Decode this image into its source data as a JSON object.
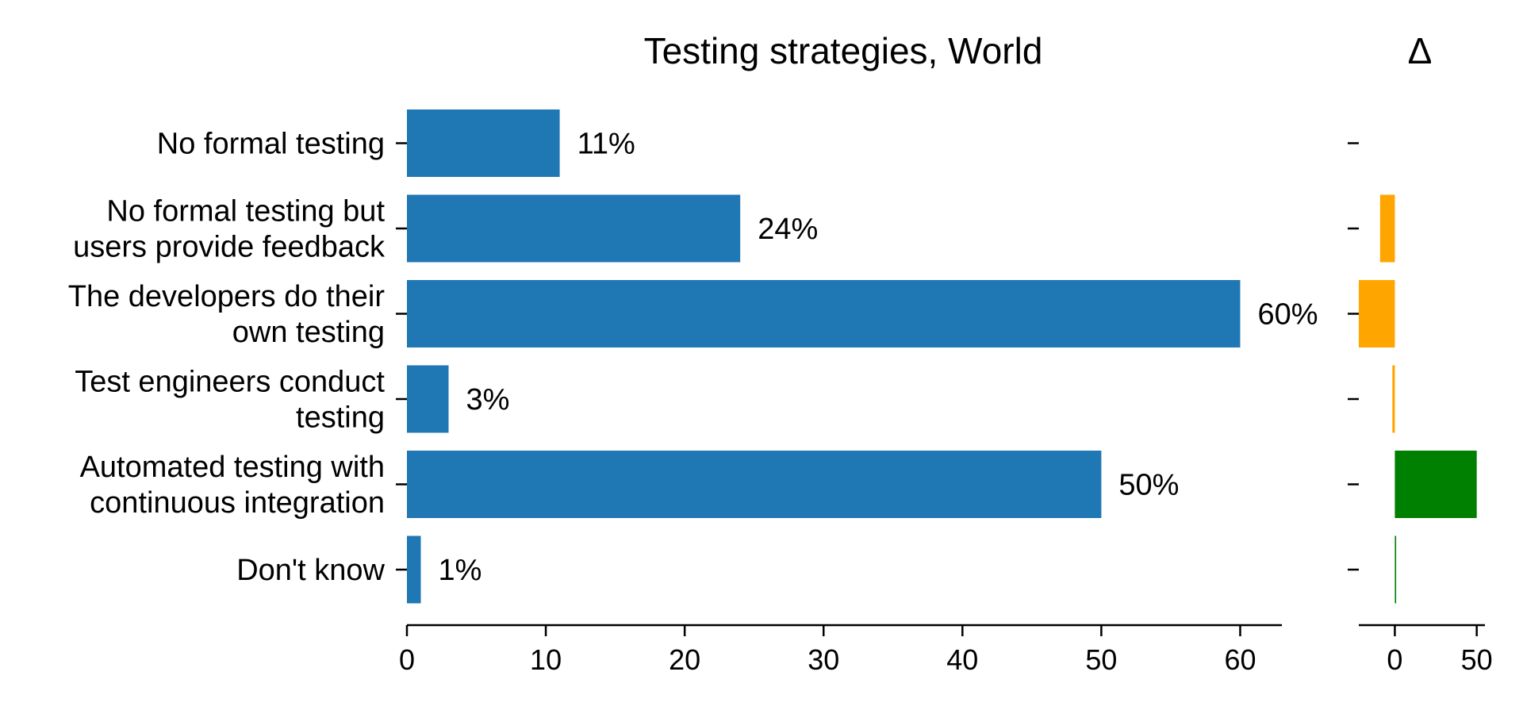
{
  "chart_data": {
    "type": "bar",
    "orientation": "horizontal",
    "title": "Testing strategies, World",
    "delta_title": "Δ",
    "categories": [
      [
        "No formal testing"
      ],
      [
        "No formal testing but",
        "users provide feedback"
      ],
      [
        "The developers do their",
        "own testing"
      ],
      [
        "Test engineers conduct",
        "testing"
      ],
      [
        "Automated testing with",
        "continuous integration"
      ],
      [
        "Don't know"
      ]
    ],
    "values": [
      11,
      24,
      60,
      3,
      50,
      1
    ],
    "value_labels": [
      "11%",
      "24%",
      "60%",
      "3%",
      "50%",
      "1%"
    ],
    "xlim": [
      0,
      63
    ],
    "xticks": [
      0,
      10,
      20,
      30,
      40,
      50,
      60
    ],
    "bar_color": "#1f77b4",
    "delta": {
      "values": [
        0,
        -9,
        -22,
        -1.5,
        50,
        0.8
      ],
      "xlim": [
        -22,
        55
      ],
      "xticks": [
        0,
        50
      ],
      "positive_color": "#008000",
      "negative_color": "#ffa500"
    }
  }
}
